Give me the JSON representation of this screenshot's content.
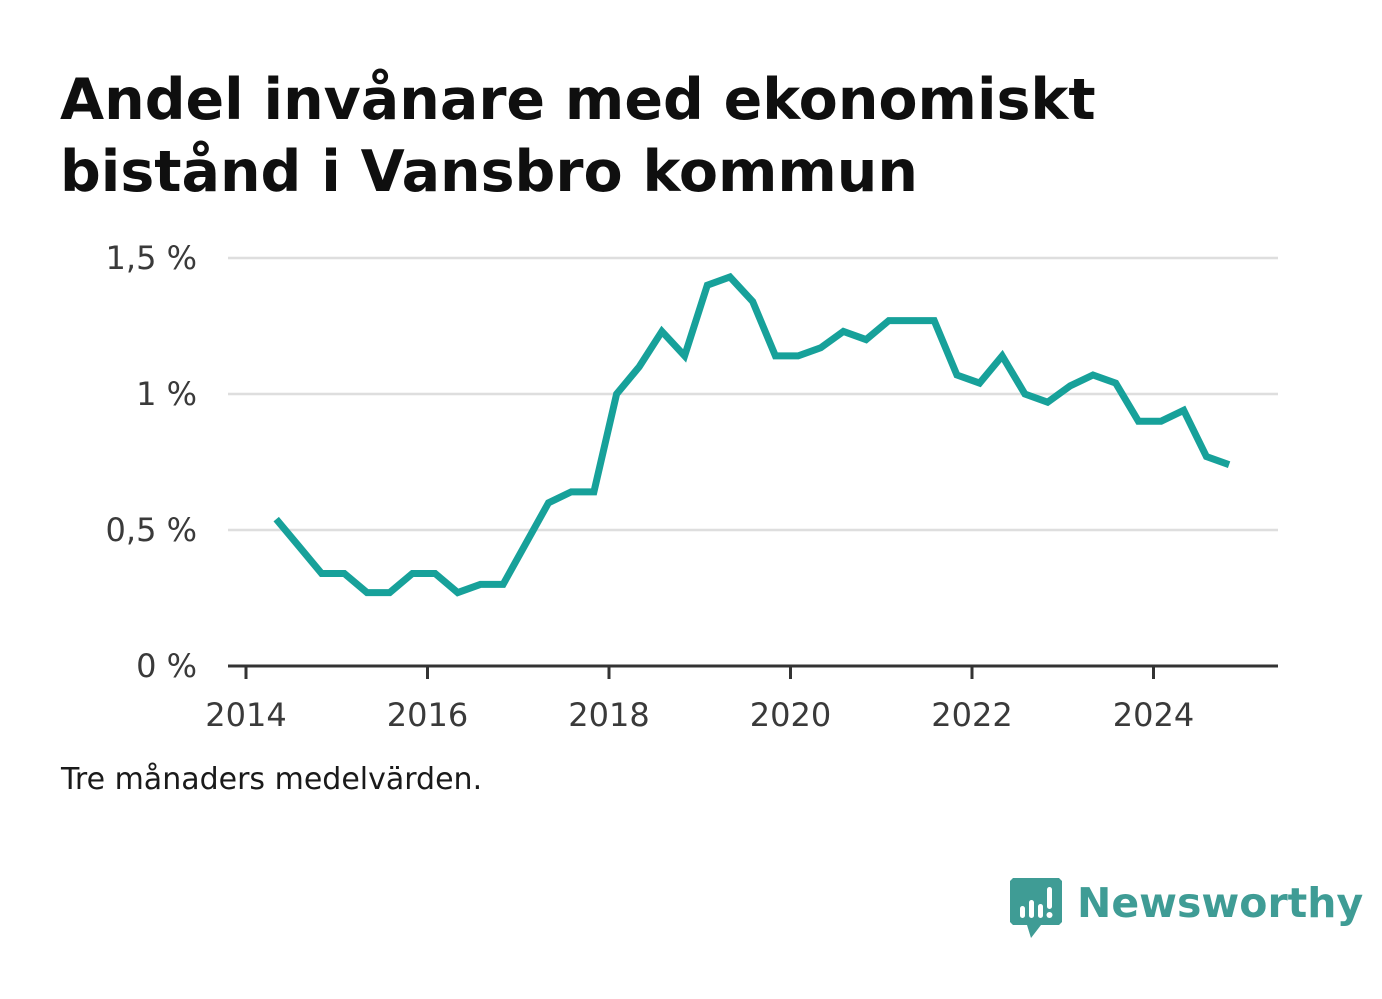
{
  "title_lines": [
    "Andel invånare med ekonomiskt",
    "bistånd i Vansbro kommun"
  ],
  "note": "Tre månaders medelvärden.",
  "brand": {
    "name": "Newsworthy",
    "icon": "newsworthy-logo-icon",
    "color": "#3f9c95"
  },
  "chart_data": {
    "type": "line",
    "title": "Andel invånare med ekonomiskt bistånd i Vansbro kommun",
    "xlabel": "",
    "ylabel": "",
    "x_ticks": [
      "2014",
      "2016",
      "2018",
      "2020",
      "2022",
      "2024"
    ],
    "y_ticks": [
      "0 %",
      "0,5 %",
      "1 %",
      "1,5 %"
    ],
    "ylim": [
      0,
      1.5
    ],
    "xlim": [
      "2014-01",
      "2025-05"
    ],
    "grid": "horizontal",
    "line_color": "#17a19a",
    "series": [
      {
        "x": [
          "2014-05",
          "2014-08",
          "2014-11",
          "2015-02",
          "2015-05",
          "2015-08",
          "2015-11",
          "2016-02",
          "2016-05",
          "2016-08",
          "2016-11",
          "2017-02",
          "2017-05",
          "2017-08",
          "2017-11",
          "2018-02",
          "2018-05",
          "2018-08",
          "2018-11",
          "2019-02",
          "2019-05",
          "2019-08",
          "2019-11",
          "2020-02",
          "2020-05",
          "2020-08",
          "2020-11",
          "2021-02",
          "2021-05",
          "2021-08",
          "2021-11",
          "2022-02",
          "2022-05",
          "2022-08",
          "2022-11",
          "2023-02",
          "2023-05",
          "2023-08",
          "2023-11",
          "2024-02",
          "2024-05",
          "2024-08",
          "2024-11"
        ],
        "values": [
          0.54,
          0.44,
          0.34,
          0.34,
          0.27,
          0.27,
          0.34,
          0.34,
          0.27,
          0.3,
          0.3,
          0.45,
          0.6,
          0.64,
          0.64,
          1.0,
          1.1,
          1.23,
          1.14,
          1.4,
          1.43,
          1.34,
          1.14,
          1.14,
          1.17,
          1.23,
          1.2,
          1.27,
          1.27,
          1.27,
          1.07,
          1.04,
          1.14,
          1.0,
          0.97,
          1.03,
          1.07,
          1.04,
          0.9,
          0.9,
          0.94,
          0.77,
          0.74
        ]
      }
    ]
  }
}
